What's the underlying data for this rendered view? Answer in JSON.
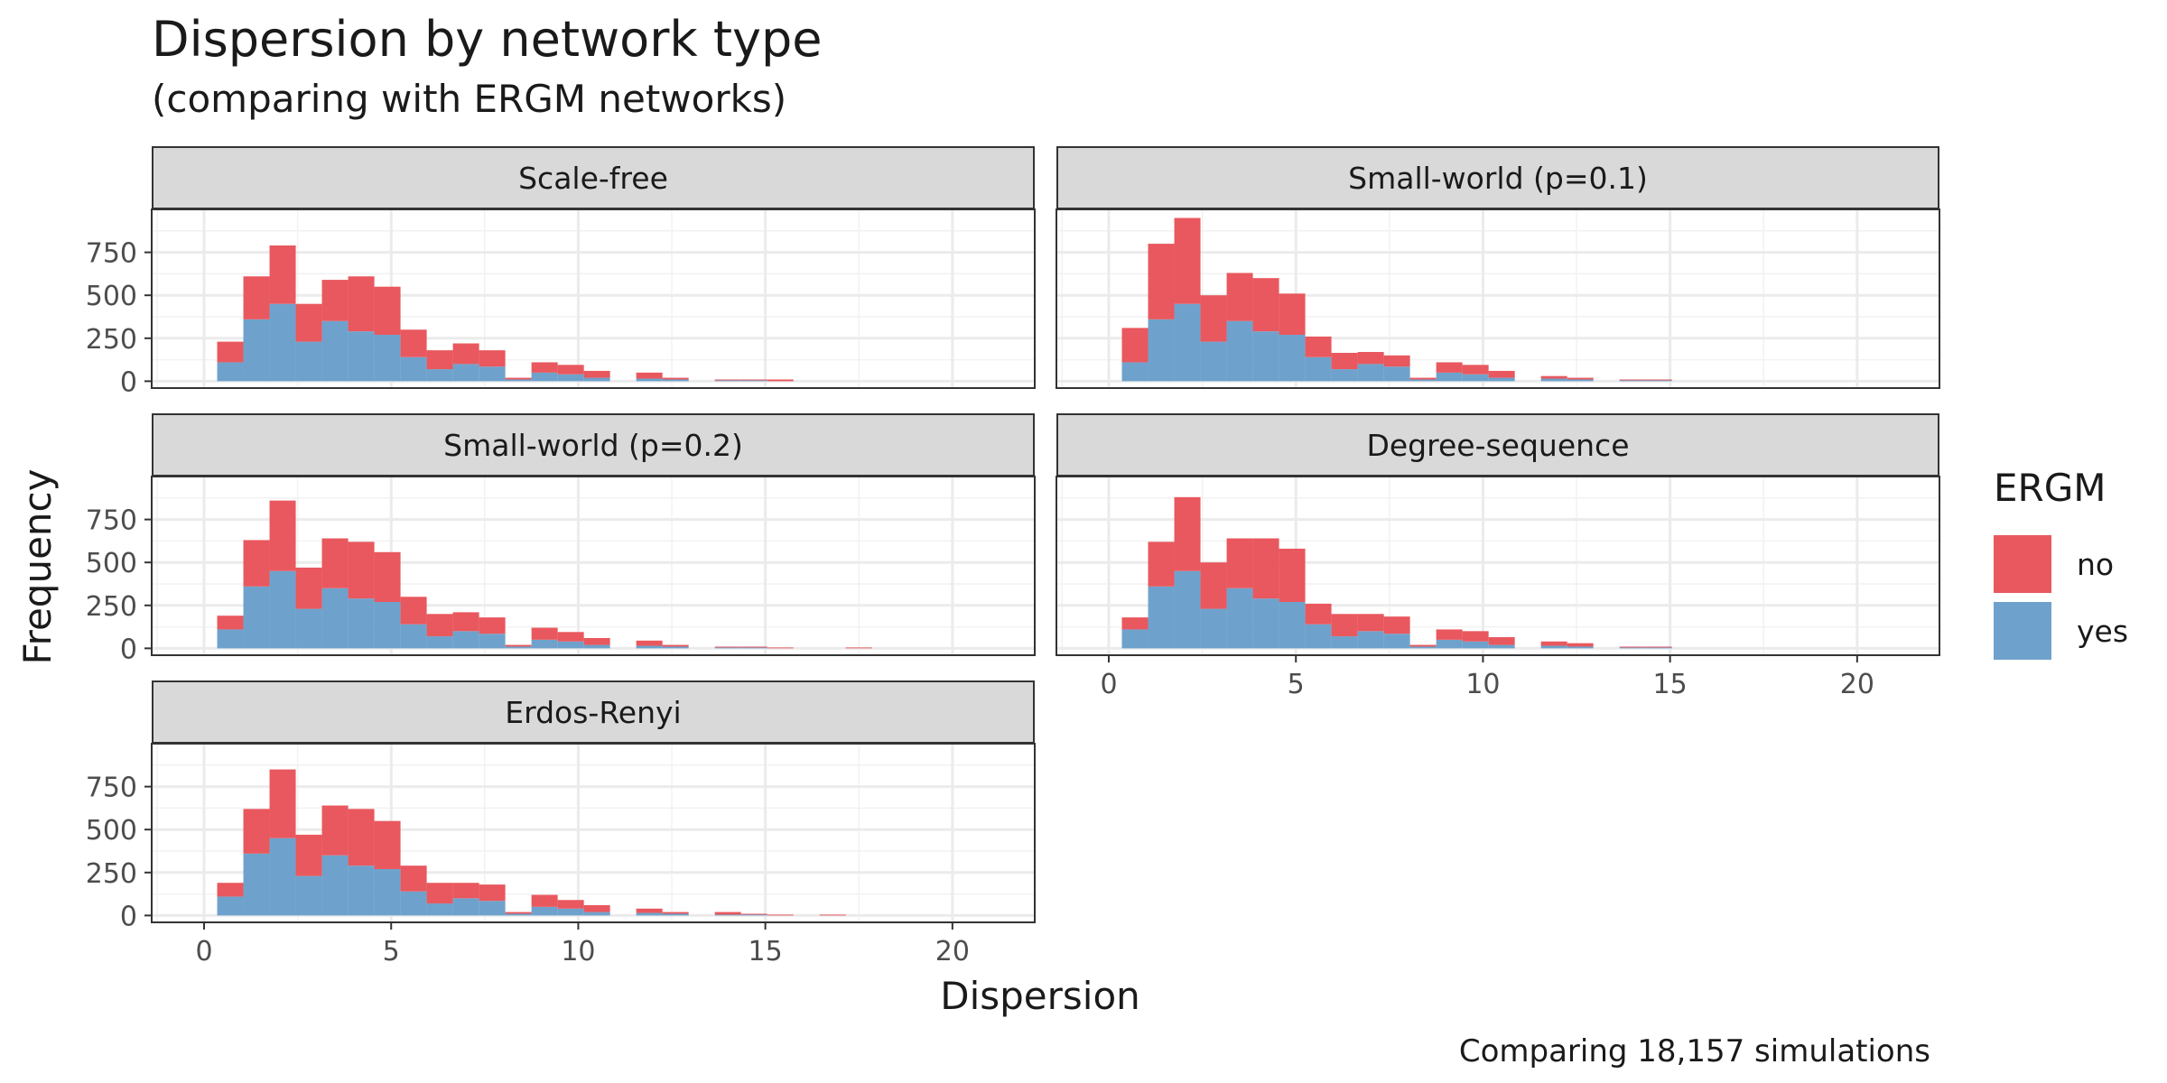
{
  "chart_data": {
    "type": "bar",
    "stacked": true,
    "title": "Dispersion by network type",
    "subtitle": "(comparing with ERGM networks)",
    "xlabel": "Dispersion",
    "ylabel": "Frequency",
    "caption": "Comparing 18,157 simulations",
    "xlim": [
      -1.4,
      22.2
    ],
    "ylim": [
      -40,
      1000
    ],
    "x_ticks": [
      0,
      5,
      10,
      15,
      20
    ],
    "y_ticks": [
      0,
      250,
      500,
      750
    ],
    "grid": true,
    "legend": {
      "title": "ERGM",
      "position": "right",
      "entries": [
        "no",
        "yes"
      ]
    },
    "colors": {
      "no": "#e8585e",
      "yes": "#6ea2cc"
    },
    "bin_centers": [
      0.7,
      1.4,
      2.1,
      2.8,
      3.5,
      4.2,
      4.9,
      5.6,
      6.3,
      7.0,
      7.7,
      8.4,
      9.1,
      9.8,
      10.5,
      11.2,
      11.9,
      12.6,
      13.3,
      14.0,
      14.7,
      15.4,
      16.1,
      16.8,
      17.5,
      18.2
    ],
    "panels": [
      {
        "name": "Scale-free",
        "yes": [
          110,
          360,
          450,
          230,
          350,
          290,
          270,
          140,
          70,
          100,
          85,
          10,
          50,
          40,
          20,
          0,
          15,
          10,
          0,
          5,
          5,
          0,
          0,
          0,
          0,
          0
        ],
        "no": [
          120,
          250,
          340,
          220,
          240,
          320,
          280,
          160,
          110,
          120,
          95,
          10,
          60,
          55,
          40,
          0,
          35,
          10,
          0,
          5,
          5,
          10,
          0,
          0,
          0,
          0
        ]
      },
      {
        "name": "Small-world (p=0.1)",
        "yes": [
          110,
          360,
          450,
          230,
          350,
          290,
          270,
          140,
          70,
          100,
          85,
          10,
          50,
          40,
          20,
          0,
          15,
          10,
          0,
          5,
          5,
          0,
          0,
          0,
          0,
          0
        ],
        "no": [
          200,
          440,
          500,
          270,
          280,
          310,
          240,
          120,
          95,
          70,
          65,
          10,
          60,
          55,
          40,
          0,
          15,
          10,
          0,
          5,
          5,
          0,
          0,
          0,
          0,
          0
        ]
      },
      {
        "name": "Small-world (p=0.2)",
        "yes": [
          110,
          360,
          450,
          230,
          350,
          290,
          270,
          140,
          70,
          100,
          85,
          10,
          50,
          40,
          20,
          0,
          15,
          10,
          0,
          5,
          5,
          0,
          0,
          0,
          0,
          0
        ],
        "no": [
          80,
          270,
          410,
          240,
          290,
          330,
          290,
          160,
          130,
          110,
          95,
          10,
          70,
          55,
          40,
          0,
          30,
          10,
          0,
          5,
          5,
          5,
          0,
          0,
          5,
          0
        ]
      },
      {
        "name": "Degree-sequence",
        "yes": [
          110,
          360,
          450,
          230,
          350,
          290,
          270,
          140,
          70,
          100,
          85,
          10,
          50,
          40,
          20,
          0,
          15,
          10,
          0,
          5,
          5,
          0,
          0,
          0,
          0,
          0
        ],
        "no": [
          70,
          260,
          430,
          270,
          290,
          350,
          310,
          120,
          130,
          100,
          100,
          10,
          60,
          60,
          45,
          0,
          25,
          20,
          0,
          5,
          5,
          0,
          0,
          0,
          0,
          0
        ]
      },
      {
        "name": "Erdos-Renyi",
        "yes": [
          110,
          360,
          450,
          230,
          350,
          290,
          270,
          140,
          70,
          100,
          85,
          10,
          50,
          40,
          20,
          0,
          15,
          10,
          0,
          5,
          5,
          0,
          0,
          0,
          0,
          0
        ],
        "no": [
          80,
          260,
          400,
          240,
          290,
          330,
          280,
          150,
          120,
          90,
          95,
          10,
          70,
          50,
          40,
          0,
          25,
          10,
          0,
          15,
          5,
          5,
          0,
          5,
          0,
          0
        ]
      }
    ]
  }
}
